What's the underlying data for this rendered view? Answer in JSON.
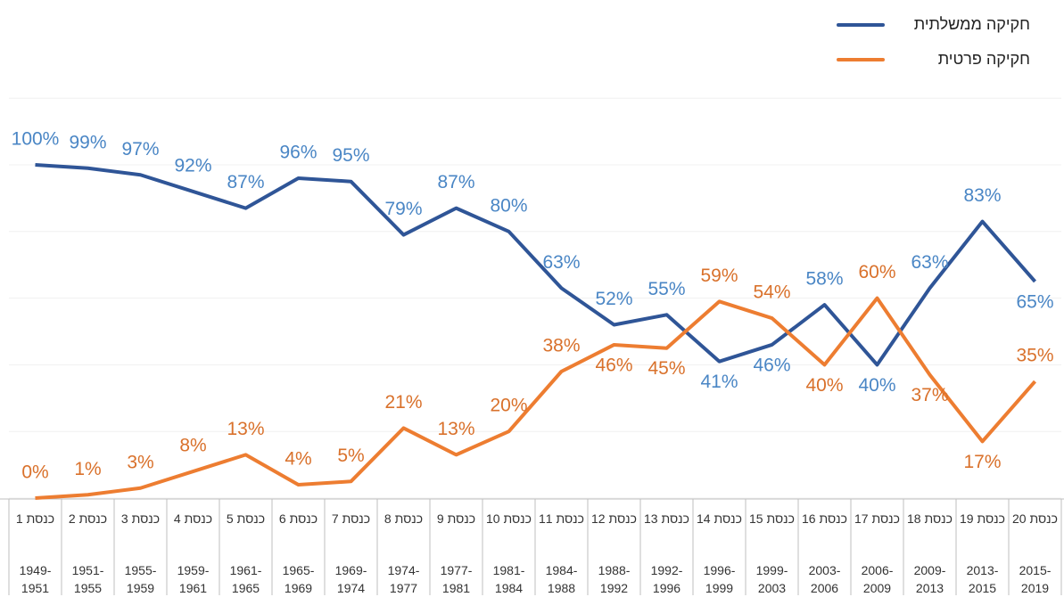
{
  "chart_data": {
    "type": "line",
    "categories": [
      "כנסת 1",
      "כנסת 2",
      "כנסת 3",
      "כנסת 4",
      "כנסת 5",
      "כנסת 6",
      "כנסת 7",
      "כנסת 8",
      "כנסת 9",
      "כנסת 10",
      "כנסת 11",
      "כנסת 12",
      "כנסת 13",
      "כנסת 14",
      "כנסת 15",
      "כנסת 16",
      "כנסת 17",
      "כנסת 18",
      "כנסת 19",
      "כנסת 20"
    ],
    "periods": [
      "1949-1951",
      "1951-1955",
      "1955-1959",
      "1959-1961",
      "1961-1965",
      "1965-1969",
      "1969-1974",
      "1974-1977",
      "1977-1981",
      "1981-1984",
      "1984-1988",
      "1988-1992",
      "1992-1996",
      "1996-1999",
      "1999-2003",
      "2003-2006",
      "2006-2009",
      "2009-2013",
      "2013-2015",
      "2015-2019"
    ],
    "series": [
      {
        "name": "חקיקה ממשלתית",
        "color": "#2f5597",
        "label_color": "#4a86c5",
        "values": [
          100,
          99,
          97,
          92,
          87,
          96,
          95,
          79,
          87,
          80,
          63,
          52,
          55,
          41,
          46,
          58,
          40,
          63,
          83,
          65
        ],
        "value_labels": [
          "100%",
          "99%",
          "97%",
          "92%",
          "87%",
          "96%",
          "95%",
          "79%",
          "87%",
          "80%",
          "63%",
          "52%",
          "55%",
          "41%",
          "46%",
          "58%",
          "40%",
          "63%",
          "83%",
          "65%"
        ]
      },
      {
        "name": "חקיקה פרטית",
        "color": "#ed7d31",
        "label_color": "#d9712b",
        "values": [
          0,
          1,
          3,
          8,
          13,
          4,
          5,
          21,
          13,
          20,
          38,
          46,
          45,
          59,
          54,
          40,
          60,
          37,
          17,
          35
        ],
        "value_labels": [
          "0%",
          "1%",
          "3%",
          "8%",
          "13%",
          "4%",
          "5%",
          "21%",
          "13%",
          "20%",
          "38%",
          "46%",
          "45%",
          "59%",
          "54%",
          "40%",
          "60%",
          "37%",
          "17%",
          "35%"
        ]
      }
    ],
    "ylim": [
      0,
      120
    ],
    "yticks": [
      0,
      20,
      40,
      60,
      80,
      100,
      120
    ],
    "grid": true,
    "legend": "top-right"
  }
}
